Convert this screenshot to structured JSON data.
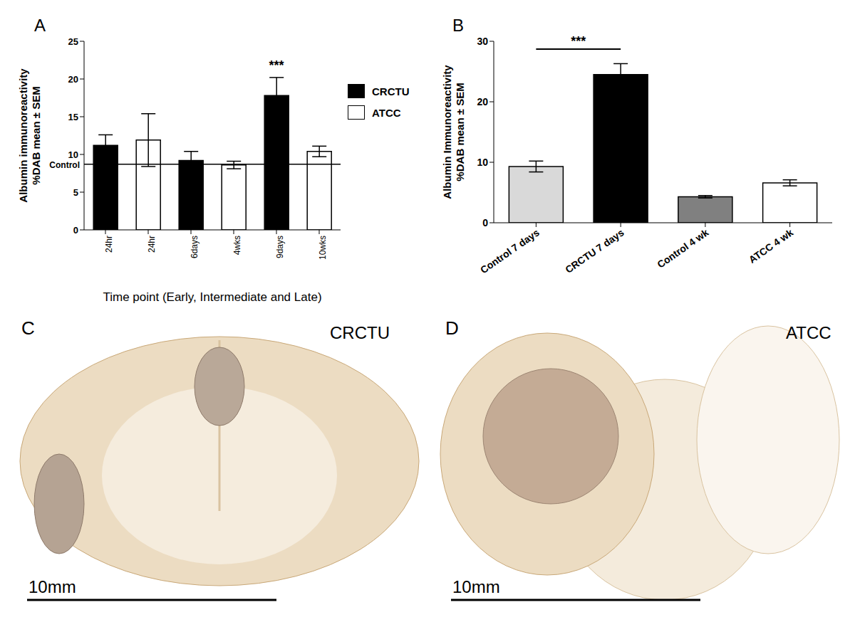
{
  "chart_data": [
    {
      "panel": "A",
      "type": "bar",
      "x_label": "Time point (Early, Intermediate and Late)",
      "y_label": "Albumin immunoreactivity\n%DAB mean ± SEM",
      "categories": [
        "24hr",
        "24hr",
        "6days",
        "4wks",
        "9days",
        "10wks"
      ],
      "series": [
        {
          "name": "CRCTU",
          "color": "#000000",
          "values": [
            11.2,
            null,
            9.2,
            null,
            17.8,
            null
          ],
          "errors": [
            1.4,
            null,
            1.2,
            null,
            2.4,
            null
          ]
        },
        {
          "name": "ATCC",
          "color": "#ffffff",
          "values": [
            null,
            11.9,
            null,
            8.6,
            null,
            10.4
          ],
          "errors": [
            null,
            3.5,
            null,
            0.5,
            null,
            0.7
          ]
        }
      ],
      "reference_line": {
        "label": "Control",
        "value": 8.7
      },
      "annotations": [
        {
          "index": 4,
          "text": "***"
        }
      ],
      "ylim": [
        0,
        25
      ],
      "yticks": [
        0,
        5,
        10,
        15,
        20,
        25
      ],
      "grid": false,
      "legend": "upper right"
    },
    {
      "panel": "B",
      "type": "bar",
      "y_label": "Albumin Immunoreactivity\n%DAB mean ± SEM",
      "categories": [
        "Control 7 days",
        "CRCTU 7 days",
        "Control 4 wk",
        "ATCC 4 wk"
      ],
      "values": [
        9.3,
        24.5,
        4.3,
        6.6
      ],
      "errors": [
        0.9,
        1.8,
        0.2,
        0.5
      ],
      "colors": [
        "#d9d9d9",
        "#000000",
        "#808080",
        "#ffffff"
      ],
      "annotations": [
        {
          "from": 0,
          "to": 1,
          "text": "***"
        }
      ],
      "ylim": [
        0,
        30
      ],
      "yticks": [
        0,
        10,
        20,
        30
      ],
      "grid": false
    }
  ],
  "images": [
    {
      "panel": "C",
      "label": "CRCTU",
      "scale_bar": "10mm"
    },
    {
      "panel": "D",
      "label": "ATCC",
      "scale_bar": "10mm"
    }
  ]
}
